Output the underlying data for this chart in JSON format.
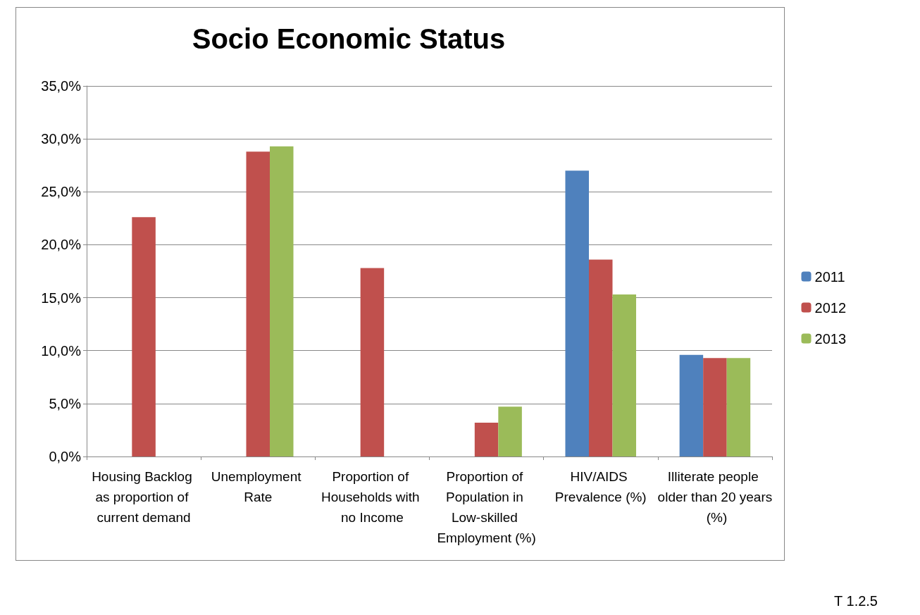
{
  "chart_data": {
    "type": "bar",
    "title": "Socio Economic Status",
    "categories": [
      "Housing Backlog as proportion of current demand",
      "Unemployment Rate",
      "Proportion of Households with no Income",
      "Proportion of Population in Low-skilled Employment (%)",
      "HIV/AIDS Prevalence (%)",
      "Illiterate people older than 20 years (%)"
    ],
    "series": [
      {
        "name": "2011",
        "color": "#4f81bd",
        "values": [
          null,
          null,
          null,
          null,
          27.0,
          9.6
        ]
      },
      {
        "name": "2012",
        "color": "#c0504d",
        "values": [
          22.6,
          28.8,
          17.8,
          3.2,
          18.6,
          9.3
        ]
      },
      {
        "name": "2013",
        "color": "#9bbb59",
        "values": [
          null,
          29.3,
          null,
          4.7,
          15.3,
          9.3
        ]
      }
    ],
    "ylim": [
      0,
      35
    ],
    "yticks": [
      {
        "value": 0,
        "label": "0,0%"
      },
      {
        "value": 5,
        "label": "5,0%"
      },
      {
        "value": 10,
        "label": "10,0%"
      },
      {
        "value": 15,
        "label": "15,0%"
      },
      {
        "value": 20,
        "label": "20,0%"
      },
      {
        "value": 25,
        "label": "25,0%"
      },
      {
        "value": 30,
        "label": "30,0%"
      },
      {
        "value": 35,
        "label": "35,0%"
      }
    ],
    "grid": "y",
    "legend": "right",
    "annotations": [
      "T 1.2.5"
    ]
  }
}
